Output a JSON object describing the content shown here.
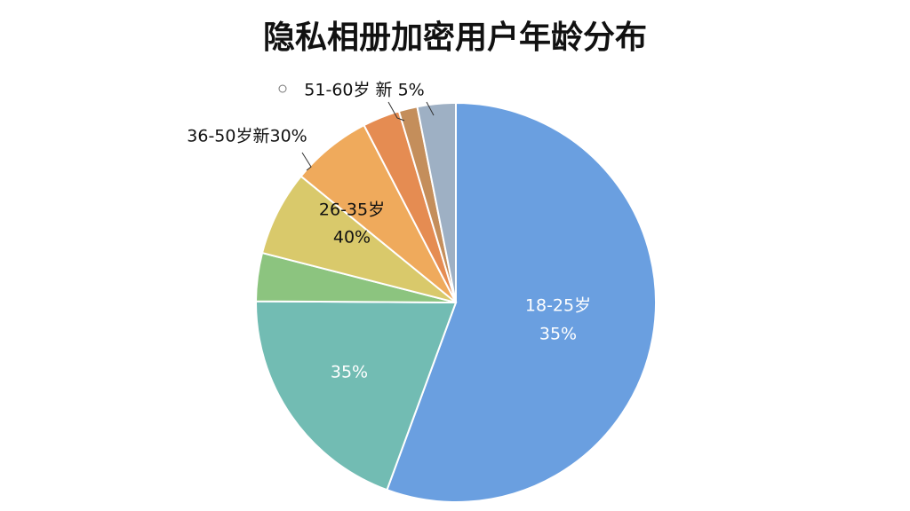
{
  "chart_data": {
    "type": "pie",
    "title": "隐私相册加密用户年龄分布",
    "values": [
      55.6,
      19.5,
      3.9,
      6.9,
      6.5,
      3.0,
      1.5,
      3.1
    ],
    "colors": [
      "#6a9fe0",
      "#72bcb3",
      "#8cc47f",
      "#d9c96b",
      "#efaa5c",
      "#e58c52",
      "#c48e5b",
      "#9eb0c4"
    ],
    "annotations": [
      "18-25岁",
      "35%",
      "35%",
      "26-35岁",
      "40%",
      "36-50岁新30%",
      "51-60岁 新 5%"
    ]
  }
}
